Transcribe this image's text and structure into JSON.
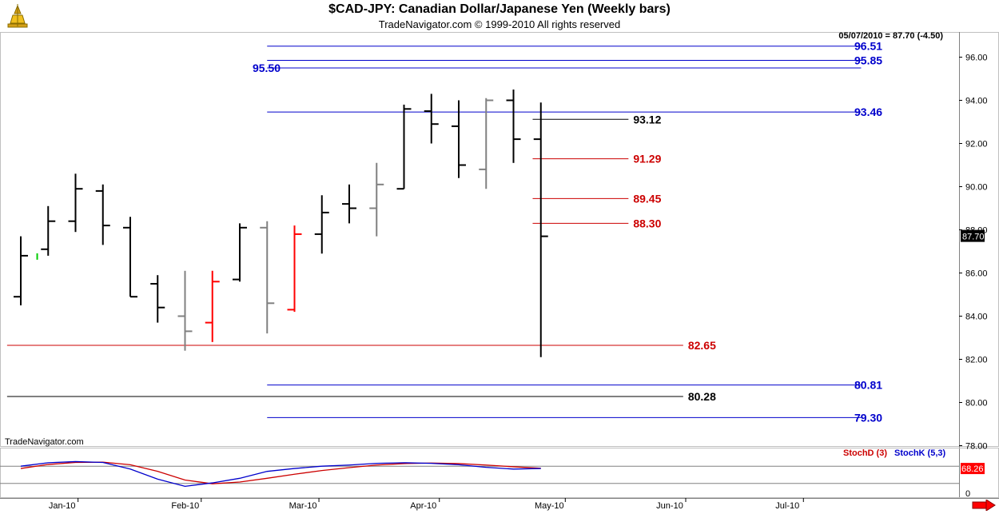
{
  "header": {
    "title": "$CAD-JPY:  Canadian Dollar/Japanese Yen  (Weekly bars)",
    "subtitle": "TradeNavigator.com © 1999-2010 All rights reserved",
    "last_info": "05/07/2010 = 87.70 (-4.50)",
    "watermark": "TradeNavigator.com"
  },
  "colors": {
    "background": "#ffffff",
    "bar_black": "#000000",
    "bar_gray": "#808080",
    "bar_red": "#ff0000",
    "bar_green": "#00cc00",
    "level_blue": "#0000cc",
    "level_red": "#cc0000",
    "level_black": "#000000",
    "stoch_d": "#cc0000",
    "stoch_k": "#0000cc"
  },
  "chart_data": {
    "type": "ohlc",
    "y_range": [
      77.5,
      97.2
    ],
    "y_ticks": [
      "78.00",
      "80.00",
      "82.00",
      "84.00",
      "86.00",
      "88.00",
      "90.00",
      "92.00",
      "94.00",
      "96.00"
    ],
    "y_tick_values": [
      78,
      80,
      82,
      84,
      86,
      88,
      90,
      92,
      94,
      96
    ],
    "x_labels": [
      "Jan-10",
      "Feb-10",
      "Mar-10",
      "Apr-10",
      "May-10",
      "Jun-10",
      "Jul-10"
    ],
    "x_label_weeks": [
      1.8,
      6.3,
      10.6,
      15.0,
      19.6,
      24.0,
      28.3
    ],
    "last_price_label": "87.70",
    "bars": [
      {
        "week": 0,
        "open": 84.9,
        "high": 87.7,
        "low": 84.5,
        "close": 86.8,
        "color": "black"
      },
      {
        "week": 1,
        "open": 87.1,
        "high": 89.1,
        "low": 86.8,
        "close": 88.4,
        "color": "black"
      },
      {
        "week": 2,
        "open": 88.4,
        "high": 90.6,
        "low": 87.9,
        "close": 89.9,
        "color": "black"
      },
      {
        "week": 3,
        "open": 89.8,
        "high": 90.1,
        "low": 87.3,
        "close": 88.2,
        "color": "black"
      },
      {
        "week": 4,
        "open": 88.1,
        "high": 88.6,
        "low": 84.9,
        "close": 84.9,
        "color": "black"
      },
      {
        "week": 5,
        "open": 85.5,
        "high": 85.9,
        "low": 83.7,
        "close": 84.4,
        "color": "black"
      },
      {
        "week": 6,
        "open": 84.0,
        "high": 86.1,
        "low": 82.4,
        "close": 83.3,
        "color": "gray"
      },
      {
        "week": 7,
        "open": 83.7,
        "high": 86.1,
        "low": 82.8,
        "close": 85.6,
        "color": "red"
      },
      {
        "week": 8,
        "open": 85.7,
        "high": 88.3,
        "low": 85.6,
        "close": 88.1,
        "color": "black"
      },
      {
        "week": 9,
        "open": 88.1,
        "high": 88.4,
        "low": 83.2,
        "close": 84.6,
        "color": "gray"
      },
      {
        "week": 10,
        "open": 84.3,
        "high": 88.2,
        "low": 84.2,
        "close": 87.8,
        "color": "red"
      },
      {
        "week": 11,
        "open": 87.8,
        "high": 89.6,
        "low": 86.9,
        "close": 88.8,
        "color": "black"
      },
      {
        "week": 12,
        "open": 89.2,
        "high": 90.1,
        "low": 88.3,
        "close": 89.0,
        "color": "black"
      },
      {
        "week": 13,
        "open": 89.0,
        "high": 91.1,
        "low": 87.7,
        "close": 90.1,
        "color": "gray"
      },
      {
        "week": 14,
        "open": 89.9,
        "high": 93.8,
        "low": 89.9,
        "close": 93.6,
        "color": "black"
      },
      {
        "week": 15,
        "open": 93.5,
        "high": 94.3,
        "low": 92.0,
        "close": 92.9,
        "color": "black"
      },
      {
        "week": 16,
        "open": 92.8,
        "high": 94.0,
        "low": 90.4,
        "close": 91.0,
        "color": "black"
      },
      {
        "week": 17,
        "open": 90.8,
        "high": 94.1,
        "low": 89.9,
        "close": 94.0,
        "color": "gray"
      },
      {
        "week": 18,
        "open": 94.0,
        "high": 94.5,
        "low": 91.1,
        "close": 92.2,
        "color": "black"
      },
      {
        "week": 19,
        "open": 92.2,
        "high": 93.9,
        "low": 82.1,
        "close": 87.7,
        "color": "black"
      },
      {
        "week": 0.6,
        "open": 86.8,
        "high": 86.8,
        "low": 86.7,
        "close": 86.8,
        "color": "green",
        "tick_only": true
      }
    ],
    "levels": [
      {
        "value": 96.51,
        "label": "96.51",
        "color": "blue",
        "x0_week": 9.0,
        "x1_week": 30.7,
        "label_side": "right"
      },
      {
        "value": 95.85,
        "label": "95.85",
        "color": "blue",
        "x0_week": 9.0,
        "x1_week": 30.7,
        "label_side": "right"
      },
      {
        "value": 95.5,
        "label": "95.50",
        "color": "blue",
        "x0_week": 9.0,
        "x1_week": 30.7,
        "label_side": "left"
      },
      {
        "value": 93.46,
        "label": "93.46",
        "color": "blue",
        "x0_week": 9.0,
        "x1_week": 30.7,
        "label_side": "right"
      },
      {
        "value": 93.12,
        "label": "93.12",
        "color": "black",
        "x0_week": 18.7,
        "x1_week": 22.2,
        "label_side": "end"
      },
      {
        "value": 91.29,
        "label": "91.29",
        "color": "red",
        "x0_week": 18.7,
        "x1_week": 22.2,
        "label_side": "end"
      },
      {
        "value": 89.45,
        "label": "89.45",
        "color": "red",
        "x0_week": 18.7,
        "x1_week": 22.2,
        "label_side": "end"
      },
      {
        "value": 88.3,
        "label": "88.30",
        "color": "red",
        "x0_week": 18.7,
        "x1_week": 22.2,
        "label_side": "end"
      },
      {
        "value": 82.65,
        "label": "82.65",
        "color": "red",
        "x0_week": -0.5,
        "x1_week": 24.2,
        "label_side": "end"
      },
      {
        "value": 80.81,
        "label": "80.81",
        "color": "blue",
        "x0_week": 9.0,
        "x1_week": 30.7,
        "label_side": "right"
      },
      {
        "value": 80.28,
        "label": "80.28",
        "color": "black",
        "x0_week": -0.5,
        "x1_week": 24.2,
        "label_side": "end"
      },
      {
        "value": 79.3,
        "label": "79.30",
        "color": "blue",
        "x0_week": 9.0,
        "x1_week": 30.7,
        "label_side": "right"
      }
    ],
    "stochastic": {
      "d_label": "StochD (3)",
      "k_label": "StochK (5,3)",
      "last_value_label": "68.26",
      "zero_label": "0",
      "y_range": [
        0,
        100
      ],
      "k_values": [
        80,
        92,
        96,
        93,
        70,
        35,
        10,
        22,
        38,
        62,
        72,
        80,
        84,
        90,
        92,
        90,
        85,
        76,
        70,
        72
      ],
      "d_values": [
        72,
        86,
        93,
        94,
        85,
        62,
        32,
        19,
        25,
        38,
        52,
        65,
        75,
        84,
        89,
        91,
        89,
        84,
        78,
        73
      ]
    }
  }
}
